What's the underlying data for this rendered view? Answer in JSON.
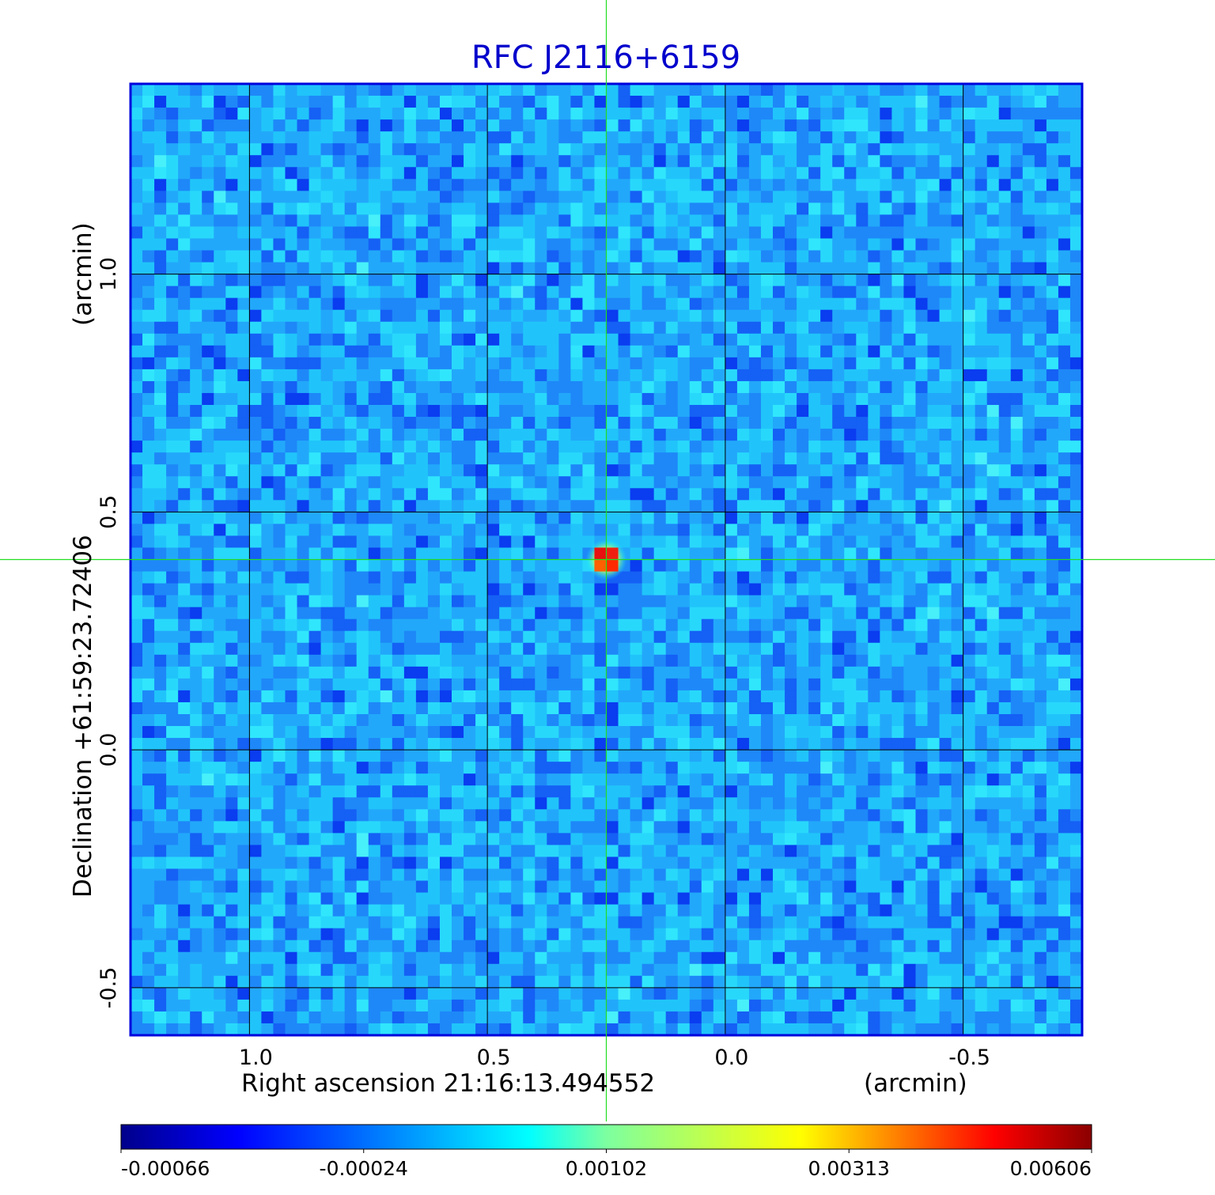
{
  "chart_data": {
    "type": "heatmap",
    "title": "RFC J2116+6159",
    "xlabel": "Right ascension  21:16:13.494552",
    "xunit": "(arcmin)",
    "ylabel": "Declination  +61:59:23.72406",
    "yunit": "(arcmin)",
    "x_ticks": [
      "1.0",
      "0.5",
      "0.0",
      "-0.5"
    ],
    "y_ticks": [
      "1.0",
      "0.5",
      "0.0",
      "-0.5"
    ],
    "xlim": [
      1.25,
      -0.75
    ],
    "ylim": [
      -0.6,
      1.4
    ],
    "grid": true,
    "crosshair": {
      "x": 0.25,
      "y": 0.4
    },
    "source_peak": {
      "x": 0.25,
      "y": 0.4,
      "value": 0.00606
    },
    "colorbar": {
      "labels": [
        "-0.00066",
        "-0.00024",
        "0.00102",
        "0.00313",
        "0.00606"
      ],
      "colors": [
        "#00008b",
        "#0000ff",
        "#00ffff",
        "#ffff00",
        "#ff0000",
        "#8b0000"
      ]
    },
    "colors": {
      "title": "#0000cc",
      "frame": "#0000dd",
      "crosshair": "#22dd22",
      "grid": "#000000"
    }
  }
}
